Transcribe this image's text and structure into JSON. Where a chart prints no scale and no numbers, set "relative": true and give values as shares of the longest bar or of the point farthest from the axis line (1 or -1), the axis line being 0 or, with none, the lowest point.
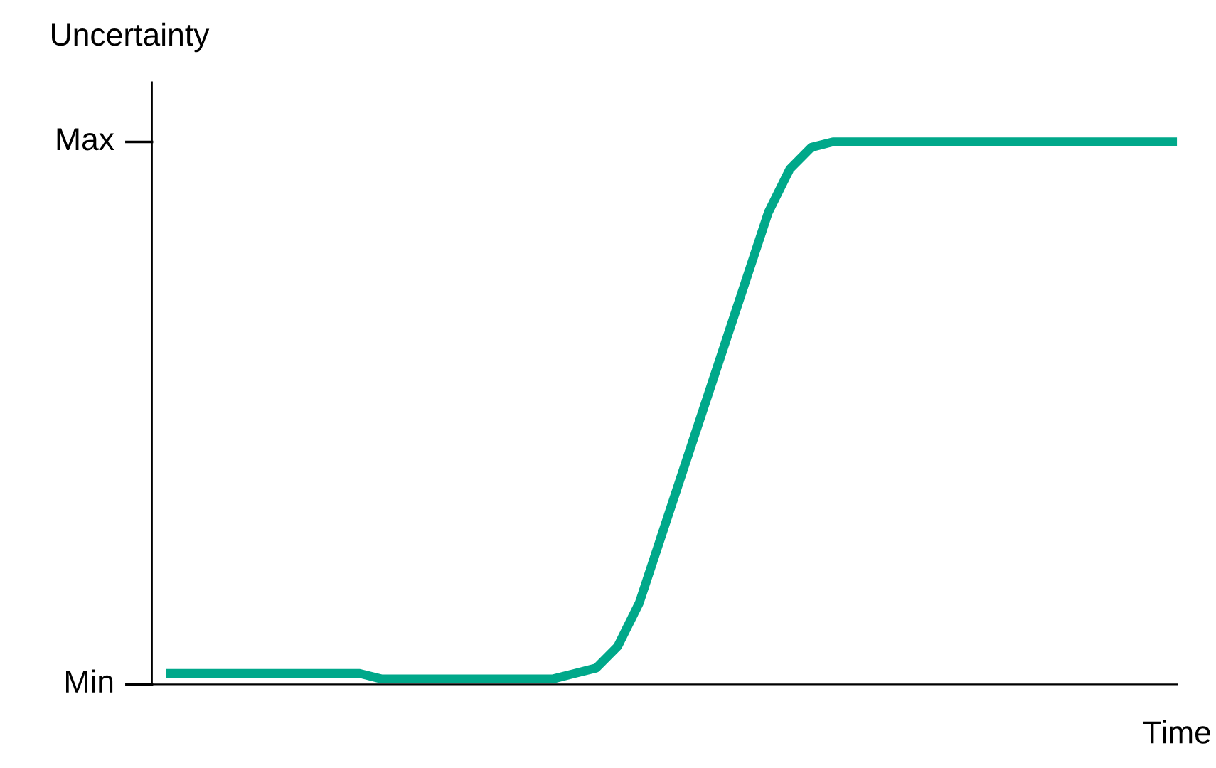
{
  "chart_data": {
    "type": "line",
    "ylabel": "Uncertainty",
    "xlabel": "Time",
    "categories": [
      null,
      null,
      null,
      null,
      null,
      null,
      null,
      null,
      null,
      null,
      null,
      null,
      null,
      null,
      null,
      null,
      null,
      null,
      null,
      null,
      null,
      null,
      null,
      null,
      null,
      null,
      null,
      null,
      null,
      null,
      null,
      null,
      null,
      null,
      null,
      null,
      null,
      null,
      null,
      null,
      null,
      null,
      null,
      null,
      null,
      null,
      null,
      null
    ],
    "series": [
      {
        "color": "#00a88a",
        "values": [
          0.02,
          0.02,
          0.02,
          0.02,
          0.02,
          0.02,
          0.02,
          0.02,
          0.02,
          0.02,
          0.01,
          0.01,
          0.01,
          0.01,
          0.01,
          0.01,
          0.01,
          0.01,
          0.01,
          0.02,
          0.03,
          0.07,
          0.15,
          0.27,
          0.39,
          0.51,
          0.63,
          0.75,
          0.87,
          0.95,
          0.99,
          1.0,
          1.0,
          1.0,
          1.0,
          1.0,
          1.0,
          1.0,
          1.0,
          1.0,
          1.0,
          1.0,
          1.0,
          1.0,
          1.0,
          1.0,
          1.0,
          1.0
        ]
      }
    ],
    "relative": true,
    "annotations": [
      "Min",
      "Max"
    ],
    "grid": false,
    "legend": false,
    "marker": "none",
    "line_style": "solid"
  }
}
